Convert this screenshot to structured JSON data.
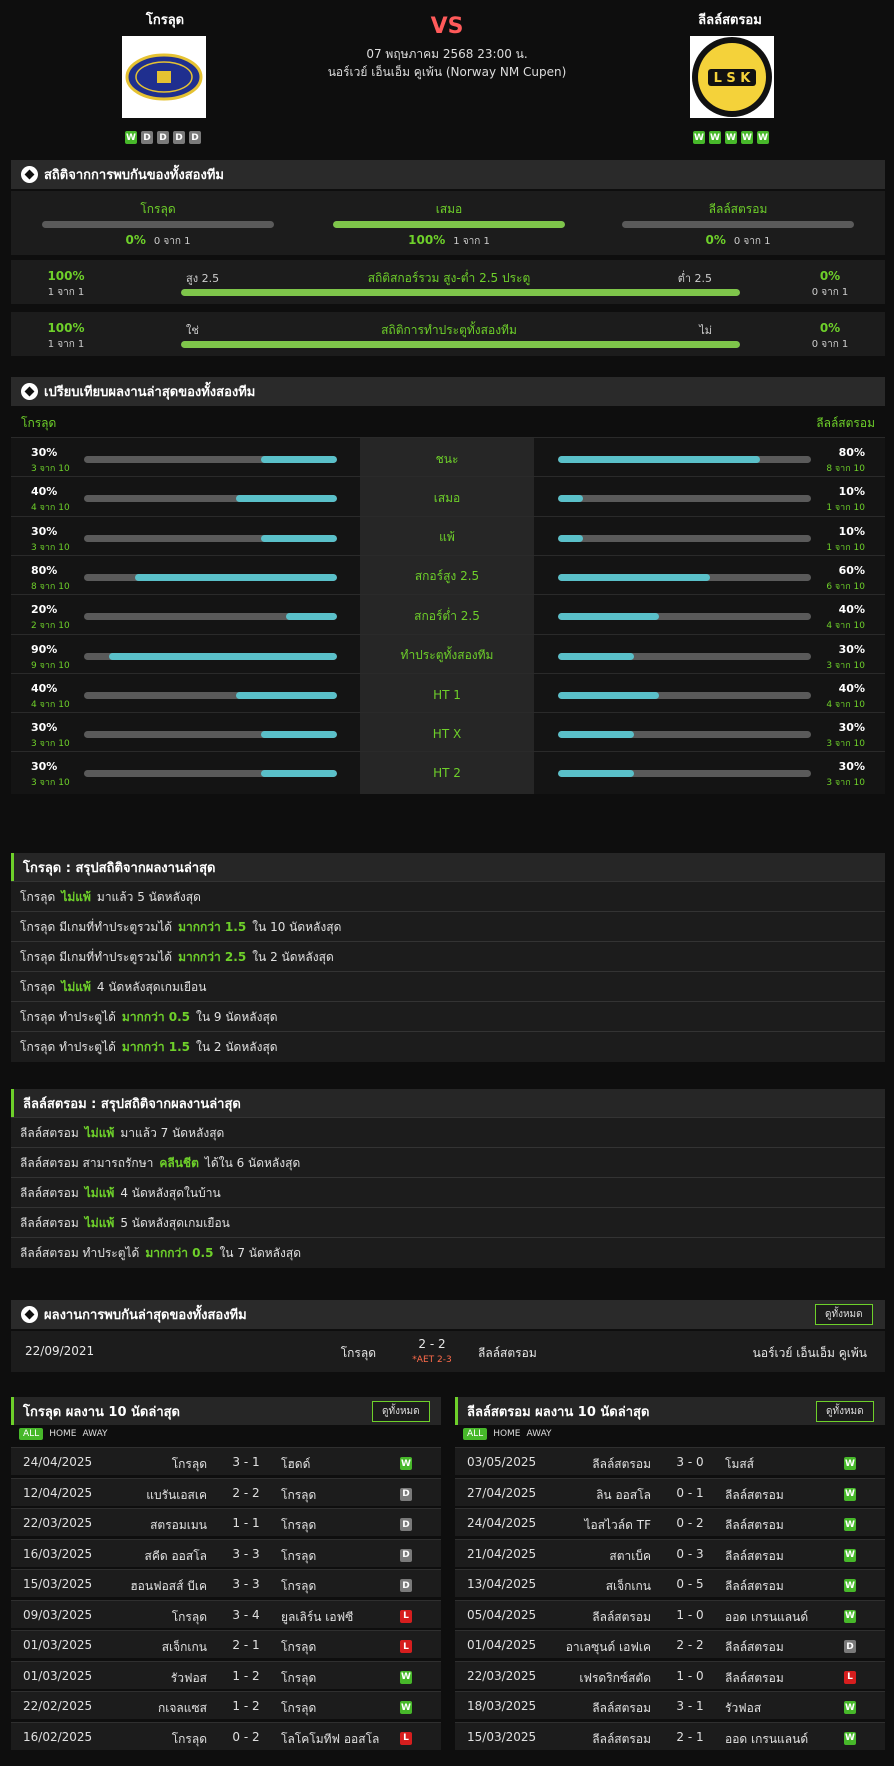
{
  "match": {
    "home_name": "โกรลุด",
    "away_name": "ลีลล์สตรอม",
    "vs": "VS",
    "datetime": "07 พฤษภาคม 2568 23:00 น.",
    "competition": "นอร์เวย์ เอ็นเอ็ม คูเพ้น (Norway NM Cupen)",
    "home_logo_text": "GRORUD IDRETTSLAG",
    "away_logo_text": "L S K",
    "home_form": [
      "W",
      "D",
      "D",
      "D",
      "D"
    ],
    "away_form": [
      "W",
      "W",
      "W",
      "W",
      "W"
    ]
  },
  "h2h_stats": {
    "title": "สถิติจากการพบกันของทั้งสองทีม",
    "home": {
      "label": "โกรลุด",
      "pct": "0%",
      "sub": "0 จาก 1",
      "value": 0
    },
    "draw": {
      "label": "เสมอ",
      "pct": "100%",
      "sub": "1 จาก 1",
      "value": 100
    },
    "away": {
      "label": "ลีลล์สตรอม",
      "pct": "0%",
      "sub": "0 จาก 1",
      "value": 0
    },
    "ou": {
      "title": "สถิติสกอร์รวม สูง-ต่ำ 2.5 ประตู",
      "left_label": "สูง 2.5",
      "right_label": "ต่ำ 2.5",
      "left_pct": "100%",
      "left_sub": "1 จาก 1",
      "right_pct": "0%",
      "right_sub": "0 จาก 1",
      "value": 100
    },
    "btts": {
      "title": "สถิติการทำประตูทั้งสองทีม",
      "left_label": "ใช่",
      "right_label": "ไม่",
      "left_pct": "100%",
      "left_sub": "1 จาก 1",
      "right_pct": "0%",
      "right_sub": "0 จาก 1",
      "value": 100
    }
  },
  "compare": {
    "title": "เปรียบเทียบผลงานล่าสุดของทั้งสองทีม",
    "home": "โกรลุด",
    "away": "ลีลล์สตรอม",
    "rows": [
      {
        "label": "ชนะ",
        "lp": "30%",
        "ls": "3 จาก 10",
        "lv": 30,
        "rp": "80%",
        "rs": "8 จาก 10",
        "rv": 80
      },
      {
        "label": "เสมอ",
        "lp": "40%",
        "ls": "4 จาก 10",
        "lv": 40,
        "rp": "10%",
        "rs": "1 จาก 10",
        "rv": 10
      },
      {
        "label": "แพ้",
        "lp": "30%",
        "ls": "3 จาก 10",
        "lv": 30,
        "rp": "10%",
        "rs": "1 จาก 10",
        "rv": 10
      },
      {
        "label": "สกอร์สูง 2.5",
        "lp": "80%",
        "ls": "8 จาก 10",
        "lv": 80,
        "rp": "60%",
        "rs": "6 จาก 10",
        "rv": 60
      },
      {
        "label": "สกอร์ต่ำ 2.5",
        "lp": "20%",
        "ls": "2 จาก 10",
        "lv": 20,
        "rp": "40%",
        "rs": "4 จาก 10",
        "rv": 40
      },
      {
        "label": "ทำประตูทั้งสองทีม",
        "lp": "90%",
        "ls": "9 จาก 10",
        "lv": 90,
        "rp": "30%",
        "rs": "3 จาก 10",
        "rv": 30
      },
      {
        "label": "HT 1",
        "lp": "40%",
        "ls": "4 จาก 10",
        "lv": 40,
        "rp": "40%",
        "rs": "4 จาก 10",
        "rv": 40
      },
      {
        "label": "HT X",
        "lp": "30%",
        "ls": "3 จาก 10",
        "lv": 30,
        "rp": "30%",
        "rs": "3 จาก 10",
        "rv": 30
      },
      {
        "label": "HT 2",
        "lp": "30%",
        "ls": "3 จาก 10",
        "lv": 30,
        "rp": "30%",
        "rs": "3 จาก 10",
        "rv": 30
      }
    ]
  },
  "home_summary": {
    "title": "โกรลุด : สรุปสถิติจากผลงานล่าสุด",
    "rows": [
      [
        "โกรลุด",
        "ไม่แพ้",
        "มาแล้ว 5 นัดหลังสุด"
      ],
      [
        "โกรลุด มีเกมที่ทำประตูรวมได้",
        "มากกว่า 1.5",
        "ใน 10 นัดหลังสุด"
      ],
      [
        "โกรลุด มีเกมที่ทำประตูรวมได้",
        "มากกว่า 2.5",
        "ใน 2 นัดหลังสุด"
      ],
      [
        "โกรลุด",
        "ไม่แพ้",
        "4 นัดหลังสุดเกมเยือน"
      ],
      [
        "โกรลุด ทำประตูได้",
        "มากกว่า 0.5",
        "ใน 9 นัดหลังสุด"
      ],
      [
        "โกรลุด ทำประตูได้",
        "มากกว่า 1.5",
        "ใน 2 นัดหลังสุด"
      ]
    ]
  },
  "away_summary": {
    "title": "ลีลล์สตรอม : สรุปสถิติจากผลงานล่าสุด",
    "rows": [
      [
        "ลีลล์สตรอม",
        "ไม่แพ้",
        "มาแล้ว 7 นัดหลังสุด"
      ],
      [
        "ลีลล์สตรอม สามารถรักษา",
        "คลีนชีต",
        "ได้ใน 6 นัดหลังสุด"
      ],
      [
        "ลีลล์สตรอม",
        "ไม่แพ้",
        "4 นัดหลังสุดในบ้าน"
      ],
      [
        "ลีลล์สตรอม",
        "ไม่แพ้",
        "5 นัดหลังสุดเกมเยือน"
      ],
      [
        "ลีลล์สตรอม ทำประตูได้",
        "มากกว่า 0.5",
        "ใน 7 นัดหลังสุด"
      ]
    ]
  },
  "h2h_results": {
    "title": "ผลงานการพบกันล่าสุดของทั้งสองทีม",
    "view_all": "ดูทั้งหมด",
    "row": {
      "date": "22/09/2021",
      "home": "โกรลุด",
      "score": "2 - 2",
      "note": "*AET 2-3",
      "away": "ลีลล์สตรอม",
      "comp": "นอร์เวย์ เอ็นเอ็ม คูเพ้น"
    }
  },
  "home_last10": {
    "title": "โกรลุด ผลงาน 10 นัดล่าสุด",
    "view_all": "ดูทั้งหมด",
    "filters": [
      "ALL",
      "HOME",
      "AWAY"
    ],
    "rows": [
      [
        "24/04/2025",
        "โกรลุด",
        "3 - 1",
        "โฮดด์",
        "W"
      ],
      [
        "12/04/2025",
        "แบรันเอสเค",
        "2 - 2",
        "โกรลุด",
        "D"
      ],
      [
        "22/03/2025",
        "สตรอมเมน",
        "1 - 1",
        "โกรลุด",
        "D"
      ],
      [
        "16/03/2025",
        "สคีด ออสโล",
        "3 - 3",
        "โกรลุด",
        "D"
      ],
      [
        "15/03/2025",
        "ฮอนฟอสส์ บีเค",
        "3 - 3",
        "โกรลุด",
        "D"
      ],
      [
        "09/03/2025",
        "โกรลุด",
        "3 - 4",
        "ยูลเลิร์น เอฟซี",
        "L"
      ],
      [
        "01/03/2025",
        "สเจ็กเกน",
        "2 - 1",
        "โกรลุด",
        "L"
      ],
      [
        "01/03/2025",
        "รัวฟอส",
        "1 - 2",
        "โกรลุด",
        "W"
      ],
      [
        "22/02/2025",
        "กเจลแซส",
        "1 - 2",
        "โกรลุด",
        "W"
      ],
      [
        "16/02/2025",
        "โกรลุด",
        "0 - 2",
        "โลโคโมทีฟ ออสโล",
        "L"
      ]
    ]
  },
  "away_last10": {
    "title": "ลีลล์สตรอม ผลงาน 10 นัดล่าสุด",
    "view_all": "ดูทั้งหมด",
    "filters": [
      "ALL",
      "HOME",
      "AWAY"
    ],
    "rows": [
      [
        "03/05/2025",
        "ลีลล์สตรอม",
        "3 - 0",
        "โมสส์",
        "W"
      ],
      [
        "27/04/2025",
        "ลิน ออสโล",
        "0 - 1",
        "ลีลล์สตรอม",
        "W"
      ],
      [
        "24/04/2025",
        "ไอสไวล์ด TF",
        "0 - 2",
        "ลีลล์สตรอม",
        "W"
      ],
      [
        "21/04/2025",
        "สตาเบ็ค",
        "0 - 3",
        "ลีลล์สตรอม",
        "W"
      ],
      [
        "13/04/2025",
        "สเจ็กเกน",
        "0 - 5",
        "ลีลล์สตรอม",
        "W"
      ],
      [
        "05/04/2025",
        "ลีลล์สตรอม",
        "1 - 0",
        "ออด เกรนแลนด์",
        "W"
      ],
      [
        "01/04/2025",
        "อาเลซุนด์ เอฟเค",
        "2 - 2",
        "ลีลล์สตรอม",
        "D"
      ],
      [
        "22/03/2025",
        "เฟรดริกซ์สตัด",
        "1 - 0",
        "ลีลล์สตรอม",
        "L"
      ],
      [
        "18/03/2025",
        "ลีลล์สตรอม",
        "3 - 1",
        "รัวฟอส",
        "W"
      ],
      [
        "15/03/2025",
        "ลีลล์สตรอม",
        "2 - 1",
        "ออด เกรนแลนด์",
        "W"
      ]
    ]
  },
  "colors": {
    "accent": "#6ed02a",
    "bar_cyan": "#5ac0c9",
    "win": "#47b82a",
    "draw": "#7a7a7a",
    "loss": "#d61e1e",
    "vs": "#ff5a5a"
  }
}
